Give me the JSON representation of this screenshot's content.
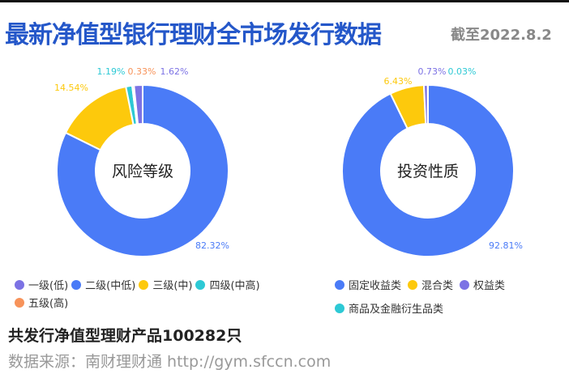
{
  "header": {
    "title": "最新净值型银行理财全市场发行数据",
    "date": "截至2022.8.2"
  },
  "colors": {
    "purple": "#7c72e4",
    "blue": "#4a7bf7",
    "yellow": "#fdc90c",
    "cyan": "#2dc9d5",
    "orange": "#f7935a"
  },
  "chart_data": [
    {
      "type": "pie",
      "donut": true,
      "center_label": "风险等级",
      "slices": [
        {
          "name": "二级(中低)",
          "value": 82.32,
          "label": "82.32%",
          "color": "#4a7bf7"
        },
        {
          "name": "三级(中)",
          "value": 14.54,
          "label": "14.54%",
          "color": "#fdc90c"
        },
        {
          "name": "四级(中高)",
          "value": 1.19,
          "label": "1.19%",
          "color": "#2dc9d5"
        },
        {
          "name": "五级(高)",
          "value": 0.33,
          "label": "0.33%",
          "color": "#f7935a"
        },
        {
          "name": "一级(低)",
          "value": 1.62,
          "label": "1.62%",
          "color": "#7c72e4"
        }
      ],
      "legend": [
        "一级(低)",
        "二级(中低)",
        "三级(中)",
        "四级(中高)",
        "五级(高)"
      ],
      "legend_placement": "bottom"
    },
    {
      "type": "pie",
      "donut": true,
      "center_label": "投资性质",
      "slices": [
        {
          "name": "固定收益类",
          "value": 92.81,
          "label": "92.81%",
          "color": "#4a7bf7"
        },
        {
          "name": "混合类",
          "value": 6.43,
          "label": "6.43%",
          "color": "#fdc90c"
        },
        {
          "name": "权益类",
          "value": 0.73,
          "label": "0.73%",
          "color": "#7c72e4"
        },
        {
          "name": "商品及金融衍生品类",
          "value": 0.03,
          "label": "0.03%",
          "color": "#2dc9d5"
        }
      ],
      "legend": [
        "固定收益类",
        "混合类",
        "权益类",
        "商品及金融衍生品类"
      ],
      "legend_placement": "bottom"
    }
  ],
  "footer": {
    "total": "共发行净值型理财产品100282只",
    "source": "数据来源：南财理财通 http://gym.sfccn.com"
  }
}
